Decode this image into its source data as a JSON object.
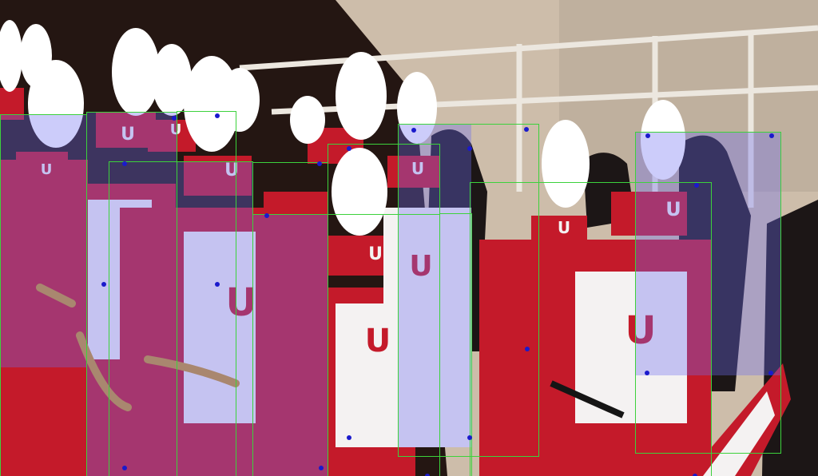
{
  "image": {
    "subject": "marching band members in red and white uniforms with plumed shakos, plus dancers in black",
    "uniform_letter": "U"
  },
  "colors": {
    "uniform_red": "#c41a2a",
    "uniform_white": "#f4f2f2",
    "plume_white": "#ffffff",
    "box_green": "#3cd23c",
    "box_fill": "#6e6ef0",
    "keypoint_blue": "#1a1acc",
    "stadium_concrete": "#c9b9a6",
    "railing": "#e8e4dc"
  },
  "annotations": {
    "box_count": 11,
    "kind": "person detection boxes with keypoints"
  }
}
